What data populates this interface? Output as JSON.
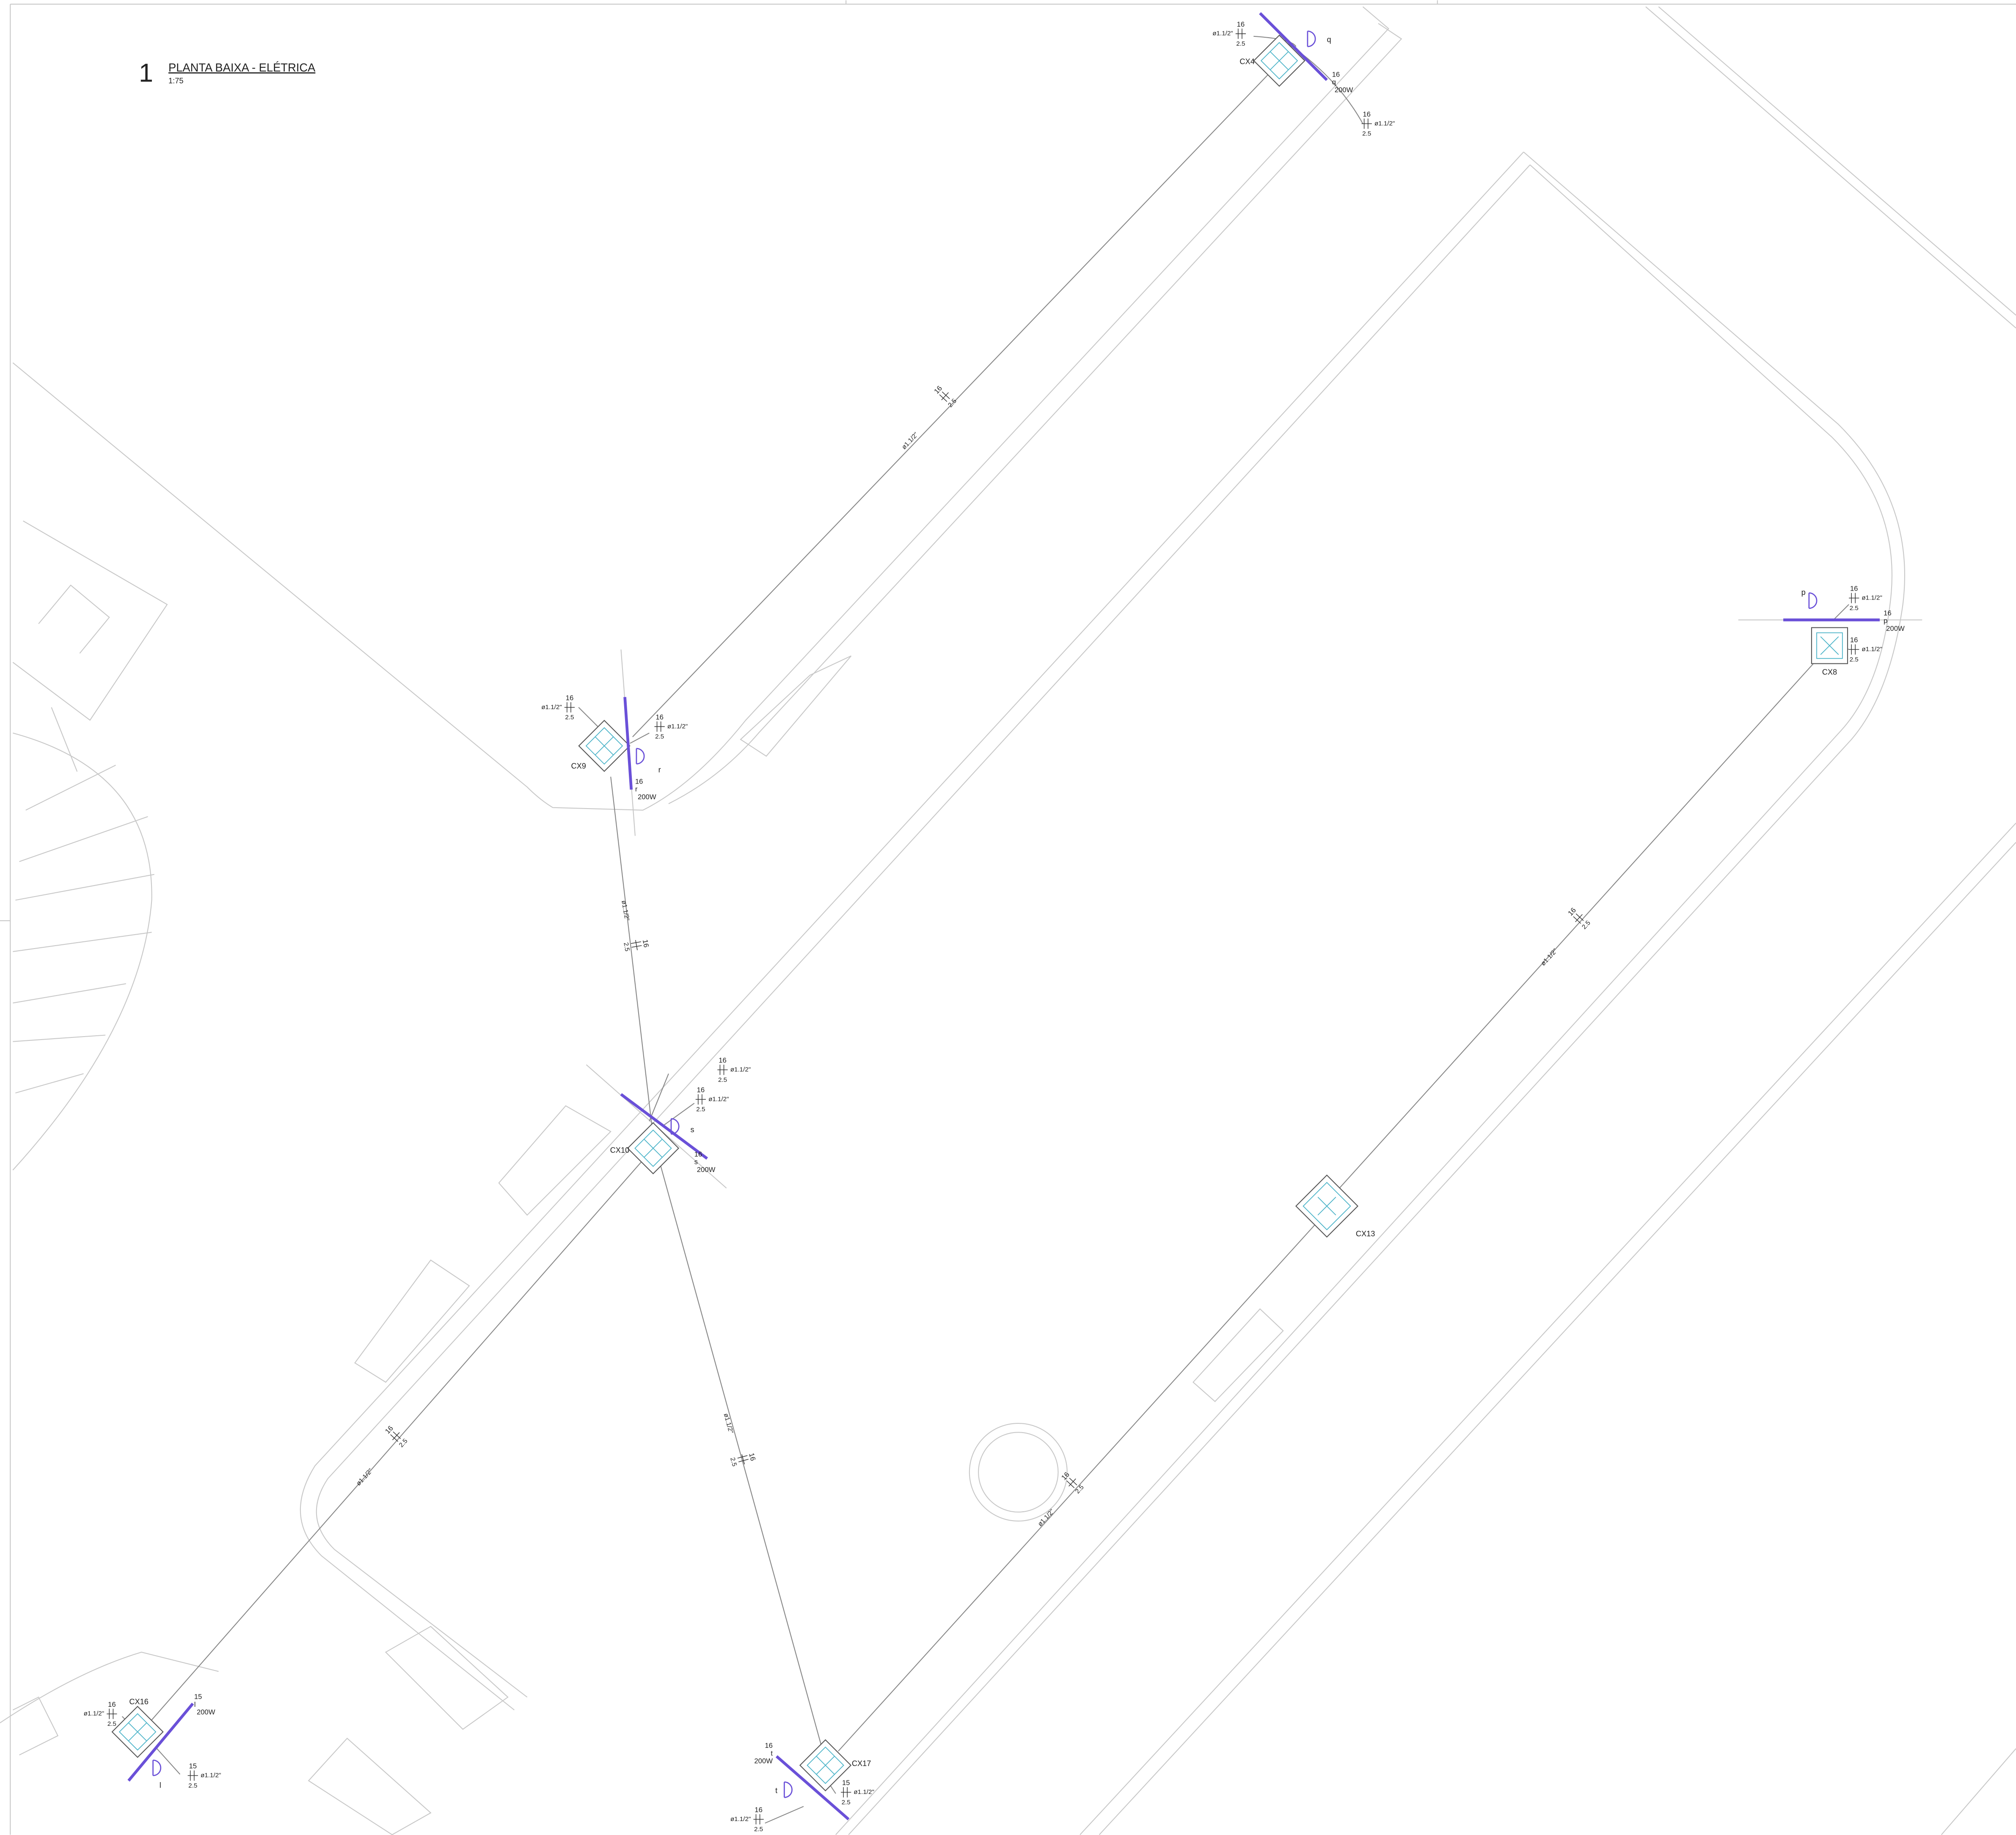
{
  "header": {
    "number": "1",
    "title": "PLANTA BAIXA - ELÉTRICA",
    "scale": "1:75"
  },
  "boxes": [
    {
      "label": "CX4"
    },
    {
      "label": "CX9"
    },
    {
      "label": "CX10"
    },
    {
      "label": "CX8"
    },
    {
      "label": "CX13"
    },
    {
      "label": "CX16"
    },
    {
      "label": "CX17"
    }
  ],
  "lamps": [
    {
      "circuit": "q",
      "wire": "16",
      "power": "200W"
    },
    {
      "circuit": "r",
      "wire": "16",
      "power": "200W"
    },
    {
      "circuit": "s",
      "wire": "16",
      "power": "200W"
    },
    {
      "circuit": "p",
      "wire": "16",
      "power": "200W"
    },
    {
      "circuit": "l",
      "wire": "15",
      "power": "200W"
    },
    {
      "circuit": "t",
      "wire": "16",
      "power": "200W"
    }
  ],
  "runs": [
    {
      "diameter": "ø1.1/2\"",
      "wire": "16",
      "ground": "2.5"
    },
    {
      "diameter": "ø1.1/2\"",
      "wire": "16",
      "ground": "2.5"
    },
    {
      "diameter": "ø1.1/2\"",
      "wire": "16",
      "ground": "2.5"
    },
    {
      "diameter": "ø1.1/2\"",
      "wire": "16",
      "ground": "2.5"
    },
    {
      "diameter": "ø1.1/2\"",
      "wire": "16",
      "ground": "2.5"
    },
    {
      "diameter": "ø1.1/2\"",
      "wire": "16",
      "ground": "2.5"
    },
    {
      "diameter": "ø1.1/2\"",
      "wire": "16",
      "ground": "2.5"
    },
    {
      "diameter": "ø1.1/2\"",
      "wire": "16",
      "ground": "2.5"
    },
    {
      "diameter": "ø1.1/2\"",
      "wire": "16",
      "ground": "2.5"
    },
    {
      "diameter": "ø1.1/2\"",
      "wire": "16",
      "ground": "2.5"
    },
    {
      "diameter": "ø1.1/2\"",
      "wire": "16",
      "ground": "2.5"
    },
    {
      "diameter": "ø1.1/2\"",
      "wire": "16",
      "ground": "2.5"
    },
    {
      "diameter": "ø1.1/2\"",
      "wire": "16",
      "ground": "2.5"
    },
    {
      "diameter": "ø1.1/2\"",
      "wire": "16",
      "ground": "2.5"
    },
    {
      "diameter": "ø1.1/2\"",
      "wire": "16",
      "ground": "2.5"
    },
    {
      "diameter": "ø1.1/2\"",
      "wire": "15",
      "ground": "2.5"
    },
    {
      "diameter": "ø1.1/2\"",
      "wire": "15",
      "ground": "2.5"
    },
    {
      "diameter": "ø1.1/2\"",
      "wire": "16",
      "ground": "2.5"
    }
  ]
}
